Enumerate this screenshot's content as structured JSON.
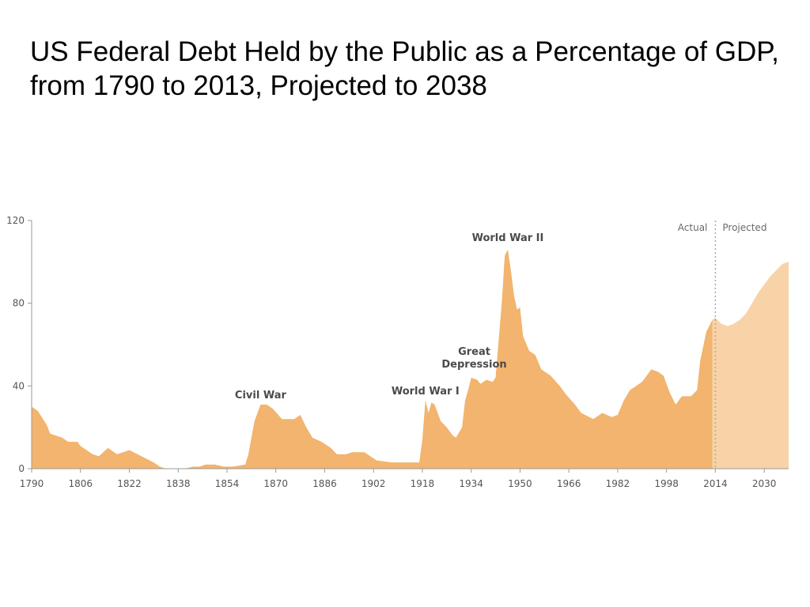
{
  "slide": {
    "title": "US Federal Debt Held by the Public as a Percentage of GDP, from 1790 to 2013, Projected to 2038"
  },
  "colors": {
    "actual_fill": "#f2b46e",
    "projected_fill": "#f8d3a7",
    "divider": "#a9a9a9",
    "axis": "#9a9a9a",
    "text": "#555555"
  },
  "chart_data": {
    "type": "area",
    "title": "US Federal Debt Held by the Public as a Percentage of GDP, from 1790 to 2013, Projected to 2038",
    "xlabel": "",
    "ylabel": "",
    "xlim": [
      1790,
      2038
    ],
    "ylim": [
      0,
      120
    ],
    "y_ticks": [
      0,
      40,
      80,
      120
    ],
    "x_ticks": [
      1790,
      1806,
      1822,
      1838,
      1854,
      1870,
      1886,
      1902,
      1918,
      1934,
      1950,
      1966,
      1982,
      1998,
      2014,
      2030
    ],
    "grid": false,
    "divider_year": 2014,
    "phase_labels": {
      "actual": "Actual",
      "projected": "Projected"
    },
    "series": [
      {
        "name": "Actual",
        "points": [
          [
            1790,
            30
          ],
          [
            1792,
            28
          ],
          [
            1795,
            21
          ],
          [
            1796,
            17
          ],
          [
            1800,
            15
          ],
          [
            1802,
            13
          ],
          [
            1805,
            13
          ],
          [
            1806,
            11
          ],
          [
            1810,
            7
          ],
          [
            1812,
            6
          ],
          [
            1815,
            10
          ],
          [
            1818,
            7
          ],
          [
            1822,
            9
          ],
          [
            1826,
            6
          ],
          [
            1830,
            3
          ],
          [
            1832,
            1
          ],
          [
            1834,
            0
          ],
          [
            1838,
            0
          ],
          [
            1840,
            0
          ],
          [
            1843,
            1
          ],
          [
            1845,
            1
          ],
          [
            1847,
            2
          ],
          [
            1850,
            2
          ],
          [
            1853,
            1
          ],
          [
            1856,
            1
          ],
          [
            1860,
            2
          ],
          [
            1861,
            7
          ],
          [
            1863,
            23
          ],
          [
            1865,
            31
          ],
          [
            1867,
            31
          ],
          [
            1869,
            29
          ],
          [
            1872,
            24
          ],
          [
            1876,
            24
          ],
          [
            1878,
            26
          ],
          [
            1880,
            20
          ],
          [
            1882,
            15
          ],
          [
            1885,
            13
          ],
          [
            1888,
            10
          ],
          [
            1890,
            7
          ],
          [
            1893,
            7
          ],
          [
            1895,
            8
          ],
          [
            1899,
            8
          ],
          [
            1903,
            4
          ],
          [
            1908,
            3
          ],
          [
            1912,
            3
          ],
          [
            1916,
            3
          ],
          [
            1917,
            3
          ],
          [
            1918,
            14
          ],
          [
            1919,
            33
          ],
          [
            1920,
            27
          ],
          [
            1921,
            32
          ],
          [
            1922,
            31
          ],
          [
            1924,
            23
          ],
          [
            1926,
            20
          ],
          [
            1928,
            16
          ],
          [
            1929,
            15
          ],
          [
            1931,
            20
          ],
          [
            1932,
            33
          ],
          [
            1933,
            38
          ],
          [
            1934,
            44
          ],
          [
            1936,
            43
          ],
          [
            1937,
            41
          ],
          [
            1939,
            43
          ],
          [
            1941,
            42
          ],
          [
            1942,
            44
          ],
          [
            1944,
            80
          ],
          [
            1945,
            103
          ],
          [
            1946,
            106
          ],
          [
            1947,
            96
          ],
          [
            1948,
            84
          ],
          [
            1949,
            77
          ],
          [
            1950,
            78
          ],
          [
            1951,
            64
          ],
          [
            1953,
            57
          ],
          [
            1955,
            55
          ],
          [
            1957,
            48
          ],
          [
            1960,
            45
          ],
          [
            1963,
            40
          ],
          [
            1965,
            36
          ],
          [
            1968,
            31
          ],
          [
            1970,
            27
          ],
          [
            1974,
            24
          ],
          [
            1977,
            27
          ],
          [
            1980,
            25
          ],
          [
            1982,
            26
          ],
          [
            1984,
            33
          ],
          [
            1986,
            38
          ],
          [
            1990,
            42
          ],
          [
            1993,
            48
          ],
          [
            1995,
            47
          ],
          [
            1997,
            45
          ],
          [
            1999,
            37
          ],
          [
            2001,
            31
          ],
          [
            2003,
            35
          ],
          [
            2006,
            35
          ],
          [
            2008,
            38
          ],
          [
            2009,
            52
          ],
          [
            2011,
            66
          ],
          [
            2013,
            72
          ]
        ]
      },
      {
        "name": "Projected",
        "points": [
          [
            2013,
            72
          ],
          [
            2014,
            73
          ],
          [
            2016,
            70
          ],
          [
            2018,
            69
          ],
          [
            2020,
            70
          ],
          [
            2022,
            72
          ],
          [
            2024,
            75
          ],
          [
            2026,
            80
          ],
          [
            2028,
            85
          ],
          [
            2030,
            89
          ],
          [
            2032,
            93
          ],
          [
            2034,
            96
          ],
          [
            2036,
            99
          ],
          [
            2038,
            100
          ]
        ]
      }
    ],
    "annotations": [
      {
        "lines": [
          "Civil War"
        ],
        "x": 1865,
        "y": 34
      },
      {
        "lines": [
          "World War I"
        ],
        "x": 1919,
        "y": 36
      },
      {
        "lines": [
          "Great",
          "Depression"
        ],
        "x": 1935,
        "y": 49
      },
      {
        "lines": [
          "World War II"
        ],
        "x": 1946,
        "y": 110
      }
    ]
  }
}
